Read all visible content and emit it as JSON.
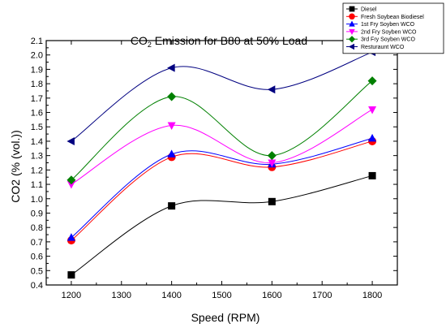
{
  "chart_data": {
    "type": "line",
    "title": "CO₂ Emission for B80 at 50% Load",
    "title_main": "CO",
    "title_sub": "2",
    "title_rest": " Emission for B80 at 50% Load",
    "xlabel": "Speed (RPM)",
    "ylabel": "CO2 (% (vol.))",
    "x": [
      1200,
      1400,
      1600,
      1800
    ],
    "xlim": [
      1150,
      1850
    ],
    "ylim": [
      0.4,
      2.1
    ],
    "xticks": [
      1200,
      1300,
      1400,
      1500,
      1600,
      1700,
      1800
    ],
    "yticks": [
      0.4,
      0.5,
      0.6,
      0.7,
      0.8,
      0.9,
      1.0,
      1.1,
      1.2,
      1.3,
      1.4,
      1.5,
      1.6,
      1.7,
      1.8,
      1.9,
      2.0,
      2.1
    ],
    "grid": false,
    "legend_position": "top-right",
    "series": [
      {
        "name": "Diesel",
        "values": [
          0.47,
          0.95,
          0.98,
          1.16
        ],
        "color": "#000000",
        "marker": "square"
      },
      {
        "name": "Fresh Soybean Biodiesel",
        "values": [
          0.71,
          1.29,
          1.22,
          1.4
        ],
        "color": "#ff0000",
        "marker": "circle"
      },
      {
        "name": "1st Fry Soyben WCO",
        "values": [
          0.73,
          1.31,
          1.24,
          1.42
        ],
        "color": "#0000ff",
        "marker": "triangle-up"
      },
      {
        "name": "2nd Fry Soyben WCO",
        "values": [
          1.1,
          1.51,
          1.25,
          1.62
        ],
        "color": "#ff00ff",
        "marker": "triangle-down"
      },
      {
        "name": "3rd Fry Soyben WCO",
        "values": [
          1.13,
          1.71,
          1.3,
          1.82
        ],
        "color": "#008000",
        "marker": "diamond"
      },
      {
        "name": "Resturaunt WCO",
        "values": [
          1.4,
          1.91,
          1.76,
          2.02
        ],
        "color": "#000080",
        "marker": "triangle-left"
      }
    ]
  }
}
